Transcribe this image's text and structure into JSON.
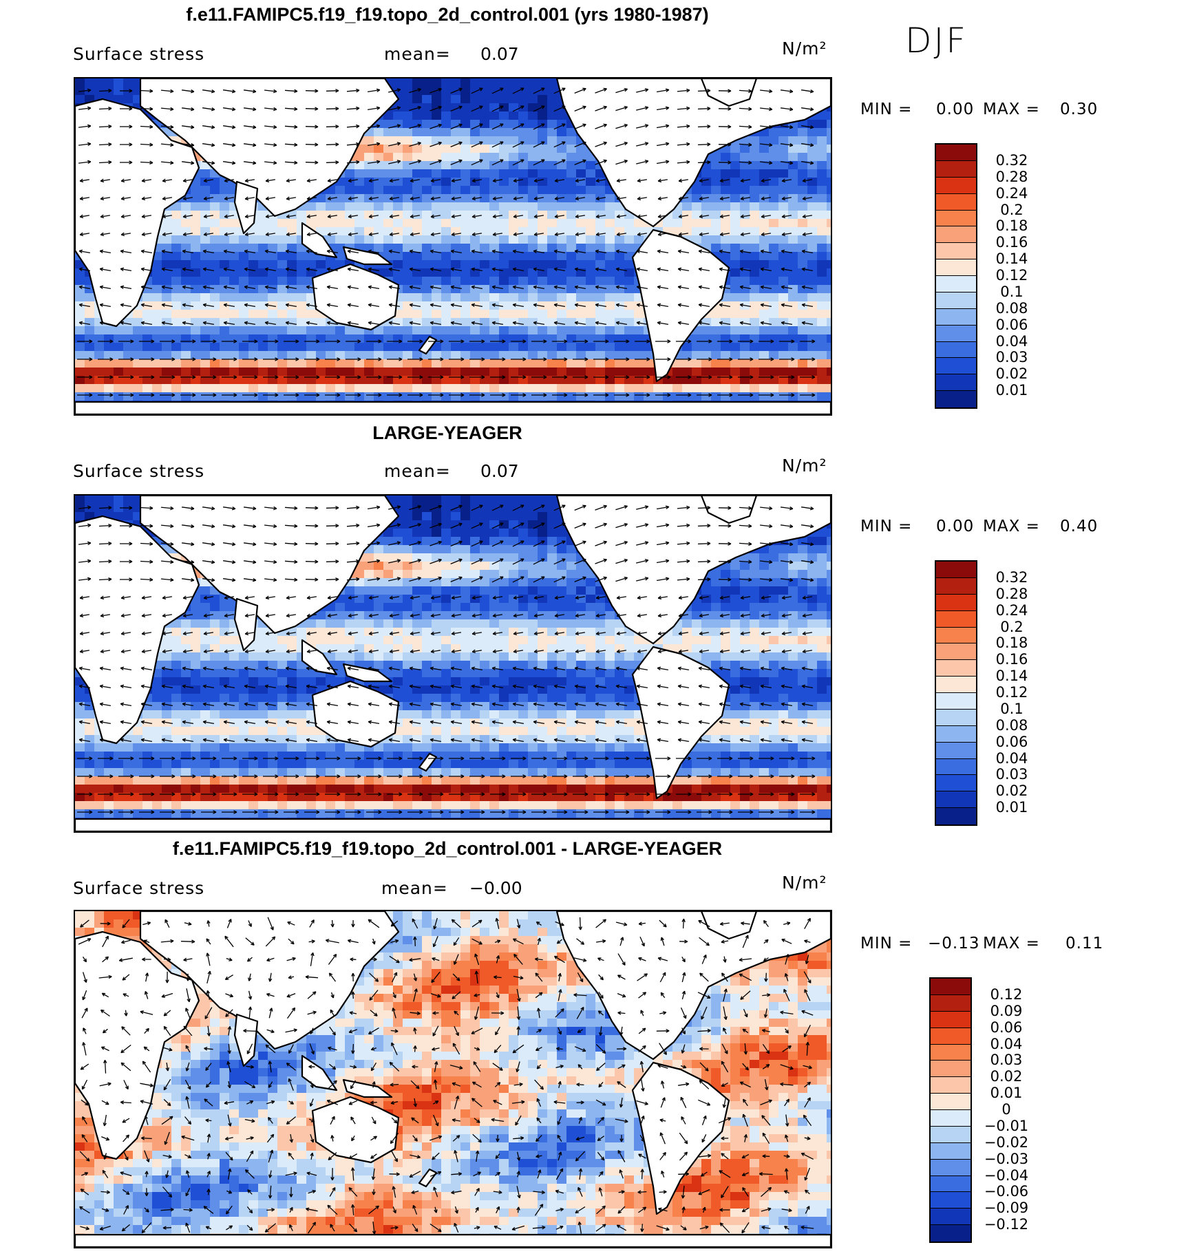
{
  "season": "DJF",
  "panels": [
    {
      "title": "f.e11.FAMIPC5.f19_f19.topo_2d_control.001 (yrs 1980-1987)",
      "variable": "Surface stress",
      "mean_label": "mean=",
      "mean_value": "0.07",
      "units": "N/m²",
      "min_label": "MIN =",
      "min_value": "0.00",
      "max_label": "MAX =",
      "max_value": "0.30",
      "colorbar": [
        "0.32",
        "0.28",
        "0.24",
        "0.2",
        "0.18",
        "0.16",
        "0.14",
        "0.12",
        "0.1",
        "0.08",
        "0.06",
        "0.04",
        "0.03",
        "0.02",
        "0.01"
      ],
      "colors": [
        "#8b0a0a",
        "#b3200f",
        "#d93314",
        "#f05a28",
        "#f7824b",
        "#f9a27a",
        "#fbc6a9",
        "#fce6d6",
        "#dcebfa",
        "#b8d4f5",
        "#8db5ef",
        "#5f8fe8",
        "#3a6ee0",
        "#1f4fd4",
        "#1236b8",
        "#08208a"
      ]
    },
    {
      "title": "LARGE-YEAGER",
      "variable": "Surface stress",
      "mean_label": "mean=",
      "mean_value": "0.07",
      "units": "N/m²",
      "min_label": "MIN =",
      "min_value": "0.00",
      "max_label": "MAX =",
      "max_value": "0.40",
      "colorbar": [
        "0.32",
        "0.28",
        "0.24",
        "0.2",
        "0.18",
        "0.16",
        "0.14",
        "0.12",
        "0.1",
        "0.08",
        "0.06",
        "0.04",
        "0.03",
        "0.02",
        "0.01"
      ],
      "colors": [
        "#8b0a0a",
        "#b3200f",
        "#d93314",
        "#f05a28",
        "#f7824b",
        "#f9a27a",
        "#fbc6a9",
        "#fce6d6",
        "#dcebfa",
        "#b8d4f5",
        "#8db5ef",
        "#5f8fe8",
        "#3a6ee0",
        "#1f4fd4",
        "#1236b8",
        "#08208a"
      ]
    },
    {
      "title": "f.e11.FAMIPC5.f19_f19.topo_2d_control.001 - LARGE-YEAGER",
      "variable": "Surface stress",
      "mean_label": "mean=",
      "mean_value": "−0.00",
      "units": "N/m²",
      "min_label": "MIN =",
      "min_value": "−0.13",
      "max_label": "MAX =",
      "max_value": "0.11",
      "colorbar": [
        "0.12",
        "0.09",
        "0.06",
        "0.04",
        "0.03",
        "0.02",
        "0.01",
        "0",
        "−0.01",
        "−0.02",
        "−0.03",
        "−0.04",
        "−0.06",
        "−0.09",
        "−0.12"
      ],
      "colors": [
        "#8b0a0a",
        "#b3200f",
        "#d93314",
        "#f05a28",
        "#f7824b",
        "#f9a27a",
        "#fbc6a9",
        "#fce6d6",
        "#dcebfa",
        "#b8d4f5",
        "#8db5ef",
        "#5f8fe8",
        "#3a6ee0",
        "#1f4fd4",
        "#1236b8",
        "#08208a"
      ]
    }
  ]
}
